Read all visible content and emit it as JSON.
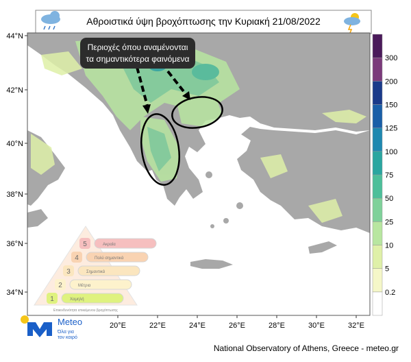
{
  "header": {
    "title": "Αθροιστικά ύψη βροχόπτωσης την Κυριακή 21/08/2022"
  },
  "annotation": {
    "lines": [
      "Περιοχές όπου αναμένονται",
      "τα σημαντικότερα φαινόμενα"
    ]
  },
  "map": {
    "lat_labels": [
      "44°N",
      "42°N",
      "40°N",
      "38°N",
      "36°N",
      "34°N"
    ],
    "lon_labels": [
      "20°E",
      "22°E",
      "24°E",
      "26°E",
      "28°E",
      "30°E",
      "32°E"
    ]
  },
  "legend": {
    "labels": [
      "0.2",
      "5",
      "10",
      "25",
      "50",
      "75",
      "100",
      "125",
      "150",
      "200",
      "300"
    ]
  },
  "risk_scale": {
    "levels": [
      {
        "number": "5",
        "label": "Ακραία"
      },
      {
        "number": "4",
        "label": "Πολύ σημαντικά"
      },
      {
        "number": "3",
        "label": "Σημαντικά"
      },
      {
        "number": "2",
        "label": "Μέτρια"
      },
      {
        "number": "1",
        "label": "Χαμηλή"
      }
    ],
    "caption": "Επικινδυνότητα επικείμενου βροχόπτωσης"
  },
  "logo": {
    "name": "Meteo",
    "tagline": [
      "Όλα για",
      "τον καιρό"
    ]
  },
  "footer": {
    "credit": "National Observatory of Athens, Greece - meteo.gr"
  }
}
